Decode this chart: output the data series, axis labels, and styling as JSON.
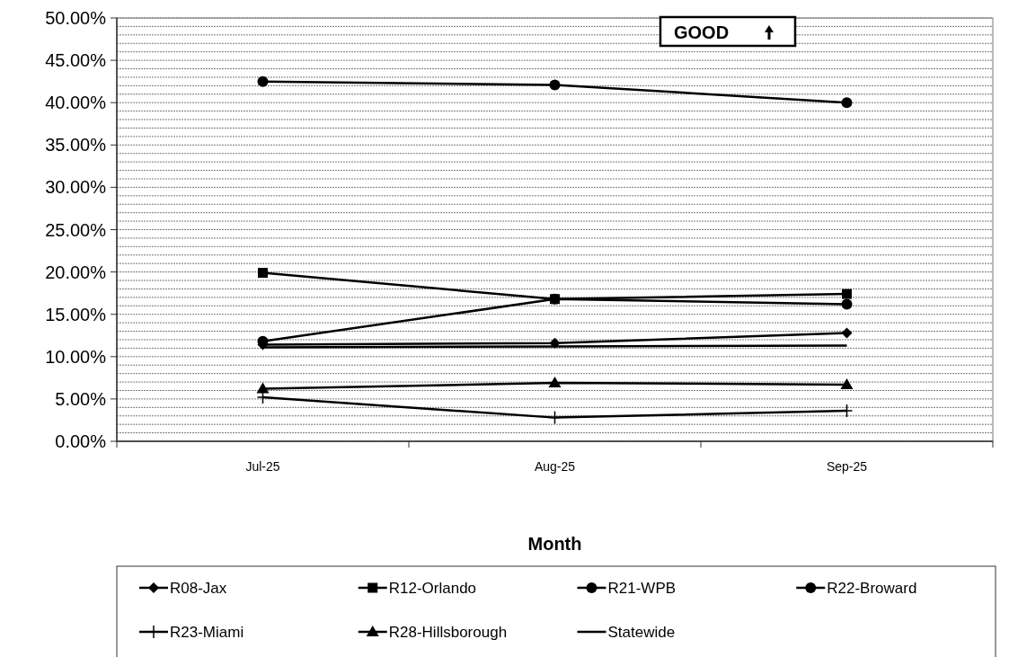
{
  "chart_data": {
    "type": "line",
    "xlabel": "Month",
    "categories": [
      "Jul-25",
      "Aug-25",
      "Sep-25"
    ],
    "series": [
      {
        "name": "R08-Jax",
        "color": "#000000",
        "marker": "diamond",
        "values": [
          11.4,
          11.6,
          12.8
        ]
      },
      {
        "name": "R12-Orlando",
        "color": "#000000",
        "marker": "square",
        "values": [
          19.9,
          16.8,
          17.4
        ]
      },
      {
        "name": "R21-WPB",
        "color": "#000000",
        "marker": "circle",
        "values": [
          11.8,
          16.8,
          16.2
        ]
      },
      {
        "name": "R22-Broward",
        "color": "#000000",
        "marker": "circle",
        "values": [
          42.5,
          42.1,
          40.0
        ]
      },
      {
        "name": "R23-Miami",
        "color": "#000000",
        "marker": "cross",
        "values": [
          5.2,
          2.8,
          3.6
        ]
      },
      {
        "name": "R28-Hillsborough",
        "color": "#000000",
        "marker": "triangle",
        "values": [
          6.2,
          6.9,
          6.7
        ]
      },
      {
        "name": "Statewide",
        "color": "#000000",
        "marker": "none",
        "values": [
          11.1,
          11.2,
          11.3
        ]
      }
    ],
    "ylim": [
      0,
      50
    ],
    "yticks": [
      {
        "value": 0,
        "label": "0.00%"
      },
      {
        "value": 1,
        "label": null
      },
      {
        "value": 2,
        "label": null
      },
      {
        "value": 3,
        "label": null
      },
      {
        "value": 4,
        "label": null
      },
      {
        "value": 5,
        "label": "5.00%"
      },
      {
        "value": 6,
        "label": null
      },
      {
        "value": 7,
        "label": null
      },
      {
        "value": 8,
        "label": null
      },
      {
        "value": 9,
        "label": null
      },
      {
        "value": 10,
        "label": "10.00%"
      },
      {
        "value": 11,
        "label": null
      },
      {
        "value": 12,
        "label": null
      },
      {
        "value": 13,
        "label": null
      },
      {
        "value": 14,
        "label": null
      },
      {
        "value": 15,
        "label": "15.00%"
      },
      {
        "value": 16,
        "label": null
      },
      {
        "value": 17,
        "label": null
      },
      {
        "value": 18,
        "label": null
      },
      {
        "value": 19,
        "label": null
      },
      {
        "value": 20,
        "label": "20.00%"
      },
      {
        "value": 21,
        "label": null
      },
      {
        "value": 22,
        "label": null
      },
      {
        "value": 23,
        "label": null
      },
      {
        "value": 24,
        "label": null
      },
      {
        "value": 25,
        "label": "25.00%"
      },
      {
        "value": 26,
        "label": null
      },
      {
        "value": 27,
        "label": null
      },
      {
        "value": 28,
        "label": null
      },
      {
        "value": 29,
        "label": null
      },
      {
        "value": 30,
        "label": "30.00%"
      },
      {
        "value": 31,
        "label": null
      },
      {
        "value": 32,
        "label": null
      },
      {
        "value": 33,
        "label": null
      },
      {
        "value": 34,
        "label": null
      },
      {
        "value": 35,
        "label": "35.00%"
      },
      {
        "value": 36,
        "label": null
      },
      {
        "value": 37,
        "label": null
      },
      {
        "value": 38,
        "label": null
      },
      {
        "value": 39,
        "label": null
      },
      {
        "value": 40,
        "label": "40.00%"
      },
      {
        "value": 41,
        "label": null
      },
      {
        "value": 42,
        "label": null
      },
      {
        "value": 43,
        "label": null
      },
      {
        "value": 44,
        "label": null
      },
      {
        "value": 45,
        "label": "45.00%"
      },
      {
        "value": 46,
        "label": null
      },
      {
        "value": 47,
        "label": null
      },
      {
        "value": 48,
        "label": null
      },
      {
        "value": 49,
        "label": null
      },
      {
        "value": 50,
        "label": "50.00%"
      }
    ],
    "grid": "y",
    "legend": "bottom",
    "line_style": "solid",
    "annotations": [
      "GOOD"
    ]
  }
}
